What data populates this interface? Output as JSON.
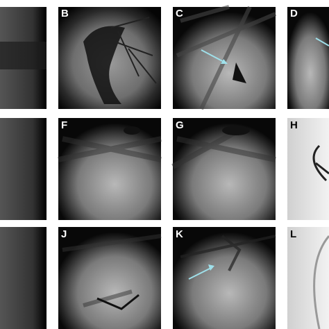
{
  "panels": [
    {
      "label": "B"
    },
    {
      "label": "C"
    },
    {
      "label": "D"
    },
    {
      "label": "F"
    },
    {
      "label": "G"
    },
    {
      "label": "H"
    },
    {
      "label": "J"
    },
    {
      "label": "K"
    },
    {
      "label": "L"
    }
  ]
}
